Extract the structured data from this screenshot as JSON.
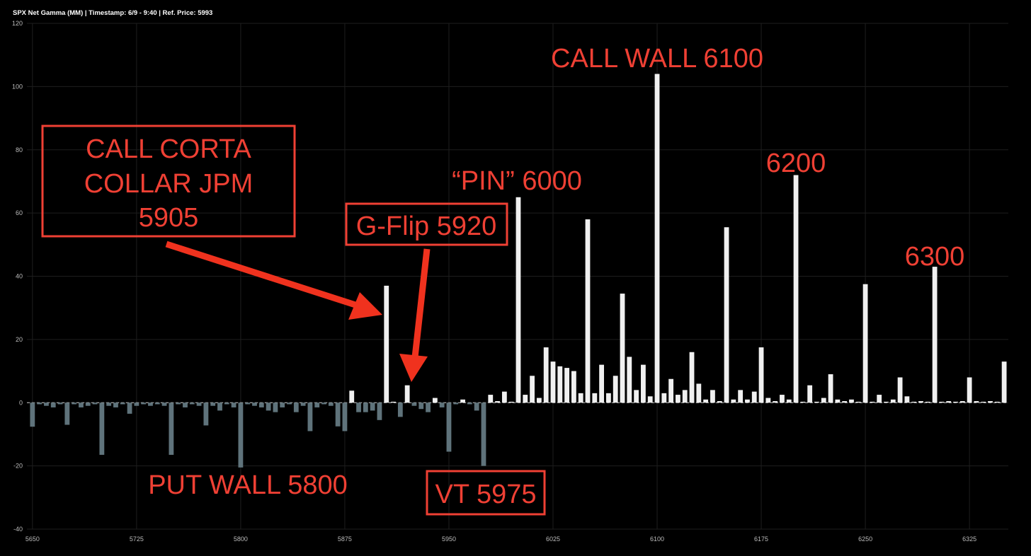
{
  "chart_data": {
    "type": "bar",
    "title": "SPX Net Gamma (MM) | Timestamp: 6/9 - 9:40  | Ref. Price: 5993",
    "x": [
      5650,
      5655,
      5660,
      5665,
      5670,
      5675,
      5680,
      5685,
      5690,
      5695,
      5700,
      5705,
      5710,
      5715,
      5720,
      5725,
      5730,
      5735,
      5740,
      5745,
      5750,
      5755,
      5760,
      5765,
      5770,
      5775,
      5780,
      5785,
      5790,
      5795,
      5800,
      5805,
      5810,
      5815,
      5820,
      5825,
      5830,
      5835,
      5840,
      5845,
      5850,
      5855,
      5860,
      5865,
      5870,
      5875,
      5880,
      5885,
      5890,
      5895,
      5900,
      5905,
      5910,
      5915,
      5920,
      5925,
      5930,
      5935,
      5940,
      5945,
      5950,
      5955,
      5960,
      5965,
      5970,
      5975,
      5980,
      5985,
      5990,
      5995,
      6000,
      6005,
      6010,
      6015,
      6020,
      6025,
      6030,
      6035,
      6040,
      6045,
      6050,
      6055,
      6060,
      6065,
      6070,
      6075,
      6080,
      6085,
      6090,
      6095,
      6100,
      6105,
      6110,
      6115,
      6120,
      6125,
      6130,
      6135,
      6140,
      6145,
      6150,
      6155,
      6160,
      6165,
      6170,
      6175,
      6180,
      6185,
      6190,
      6195,
      6200,
      6205,
      6210,
      6215,
      6220,
      6225,
      6230,
      6235,
      6240,
      6245,
      6250,
      6255,
      6260,
      6265,
      6270,
      6275,
      6280,
      6285,
      6290,
      6295,
      6300,
      6305,
      6310,
      6315,
      6320,
      6325,
      6330,
      6335,
      6340,
      6345,
      6350
    ],
    "values": [
      -7.6,
      -0.5,
      -1,
      -1.5,
      -0.5,
      -7,
      -0.5,
      -1.5,
      -1,
      -0.5,
      -16.5,
      -1,
      -1.5,
      -0.5,
      -3.5,
      -1,
      -0.5,
      -1,
      -0.5,
      -1,
      -16.5,
      -0.5,
      -1.5,
      -0.5,
      -1,
      -7.2,
      -1,
      -2.5,
      -0.5,
      -1.5,
      -20.5,
      -0.5,
      -1,
      -1.5,
      -2.5,
      -3,
      -1.5,
      -0.5,
      -3,
      -1,
      -9,
      -1.5,
      -0.5,
      -1,
      -7.5,
      -9,
      3.8,
      -3,
      -3,
      -2.5,
      -5.5,
      37,
      0.3,
      -4.5,
      5.5,
      -1,
      -2,
      -3,
      1.5,
      -1.5,
      -15.5,
      -0.5,
      1,
      -0.5,
      -2.5,
      -20,
      2.5,
      0.5,
      3.5,
      0.3,
      65,
      2.5,
      8.5,
      1.5,
      17.5,
      13,
      11.5,
      11,
      10,
      3,
      58,
      3,
      12,
      3,
      8.5,
      34.5,
      14.5,
      4,
      12,
      2,
      104,
      3,
      7.5,
      2.5,
      4,
      16,
      6,
      1,
      4,
      0.5,
      55.5,
      1,
      4,
      1,
      3.5,
      17.5,
      1.5,
      0.5,
      2.5,
      1,
      72,
      0.3,
      5.5,
      0.3,
      1.5,
      9,
      1,
      0.5,
      1,
      0.3,
      37.5,
      0.3,
      2.5,
      0.3,
      1,
      8,
      2,
      0.3,
      0.5,
      0.3,
      43,
      0.3,
      0.5,
      0.3,
      0.5,
      8,
      0.5,
      0.3,
      0.5,
      0.3,
      13
    ],
    "colors": {
      "positive": "#f0f0f0",
      "negative": "#5f737b"
    },
    "xlim": [
      5646,
      6353
    ],
    "xticks": [
      5650,
      5725,
      5800,
      5875,
      5950,
      6025,
      6100,
      6175,
      6250,
      6325
    ],
    "ylim": [
      -40,
      120
    ],
    "yticks": [
      -40,
      -20,
      0,
      20,
      40,
      60,
      80,
      100,
      120
    ],
    "grid": true,
    "annotations": [
      {
        "text": "CALL WALL 6100"
      },
      {
        "text": "6200"
      },
      {
        "text": "“PIN” 6000"
      },
      {
        "text": "6300"
      },
      {
        "text": "G-Flip 5920"
      },
      {
        "lines": [
          "CALL CORTA",
          "COLLAR JPM",
          "5905"
        ]
      },
      {
        "text": "PUT WALL 5800"
      },
      {
        "text": "VT 5975"
      }
    ]
  }
}
